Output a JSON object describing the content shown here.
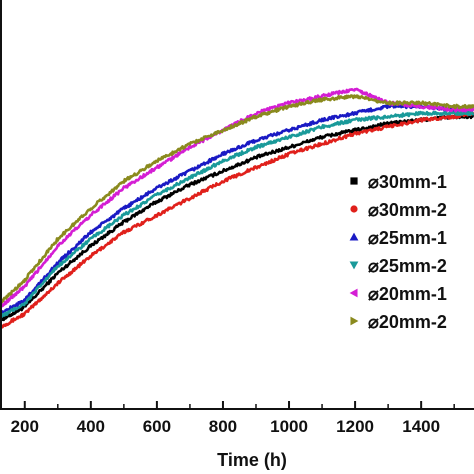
{
  "chart_data": {
    "type": "line",
    "xlabel": "Time (h)",
    "ylabel": "",
    "title": "",
    "xlim": [
      125,
      1560
    ],
    "ylim": [
      0,
      100
    ],
    "x_ticks": [
      200,
      400,
      600,
      800,
      1000,
      1200,
      1400
    ],
    "x_tick_labels": [
      "200",
      "400",
      "600",
      "800",
      "1000",
      "1200",
      "1400"
    ],
    "grid": false,
    "legend_position": "right",
    "series": [
      {
        "name": "⌀30mm-1",
        "color": "#000000",
        "marker": "square",
        "x": [
          125,
          200,
          300,
          400,
          500,
          600,
          700,
          800,
          900,
          1000,
          1100,
          1200,
          1300,
          1400,
          1500,
          1560
        ],
        "y": [
          26,
          30,
          40,
          48,
          55,
          61,
          66,
          70,
          74,
          77,
          80,
          82,
          84,
          85,
          86,
          86
        ]
      },
      {
        "name": "⌀30mm-2",
        "color": "#e0201b",
        "marker": "circle",
        "x": [
          125,
          200,
          300,
          400,
          500,
          600,
          700,
          800,
          900,
          1000,
          1100,
          1200,
          1300,
          1400,
          1500,
          1560
        ],
        "y": [
          24,
          28,
          37,
          45,
          52,
          57,
          62,
          67,
          71,
          75,
          78,
          81,
          83,
          85,
          86,
          87
        ]
      },
      {
        "name": "⌀25mm-1",
        "color": "#1a1ac4",
        "marker": "triangle-up",
        "x": [
          125,
          200,
          300,
          400,
          500,
          600,
          700,
          800,
          900,
          1000,
          1100,
          1200,
          1300,
          1400,
          1500,
          1560
        ],
        "y": [
          28,
          32,
          43,
          52,
          59,
          65,
          70,
          75,
          79,
          82,
          85,
          87,
          89,
          89,
          88,
          88
        ]
      },
      {
        "name": "⌀25mm-2",
        "color": "#1a9a9a",
        "marker": "triangle-down",
        "x": [
          125,
          200,
          300,
          400,
          500,
          600,
          700,
          800,
          900,
          1000,
          1100,
          1200,
          1300,
          1400,
          1500,
          1560
        ],
        "y": [
          27,
          31,
          42,
          50,
          57,
          63,
          68,
          73,
          77,
          80,
          83,
          85,
          86,
          87,
          87,
          87
        ]
      },
      {
        "name": "⌀20mm-1",
        "color": "#d41ed4",
        "marker": "triangle-left",
        "x": [
          125,
          200,
          300,
          400,
          500,
          600,
          700,
          800,
          900,
          1000,
          1100,
          1200,
          1300,
          1400,
          1500,
          1560
        ],
        "y": [
          30,
          36,
          48,
          57,
          65,
          71,
          77,
          82,
          87,
          90,
          92,
          94,
          90,
          89,
          88,
          88
        ]
      },
      {
        "name": "⌀20mm-2",
        "color": "#8a8a1e",
        "marker": "triangle-right",
        "x": [
          125,
          200,
          300,
          400,
          500,
          600,
          700,
          800,
          900,
          1000,
          1100,
          1200,
          1300,
          1400,
          1500,
          1560
        ],
        "y": [
          31,
          38,
          50,
          59,
          67,
          73,
          78,
          82,
          86,
          89,
          91,
          92,
          90,
          90,
          89,
          89
        ]
      }
    ]
  }
}
